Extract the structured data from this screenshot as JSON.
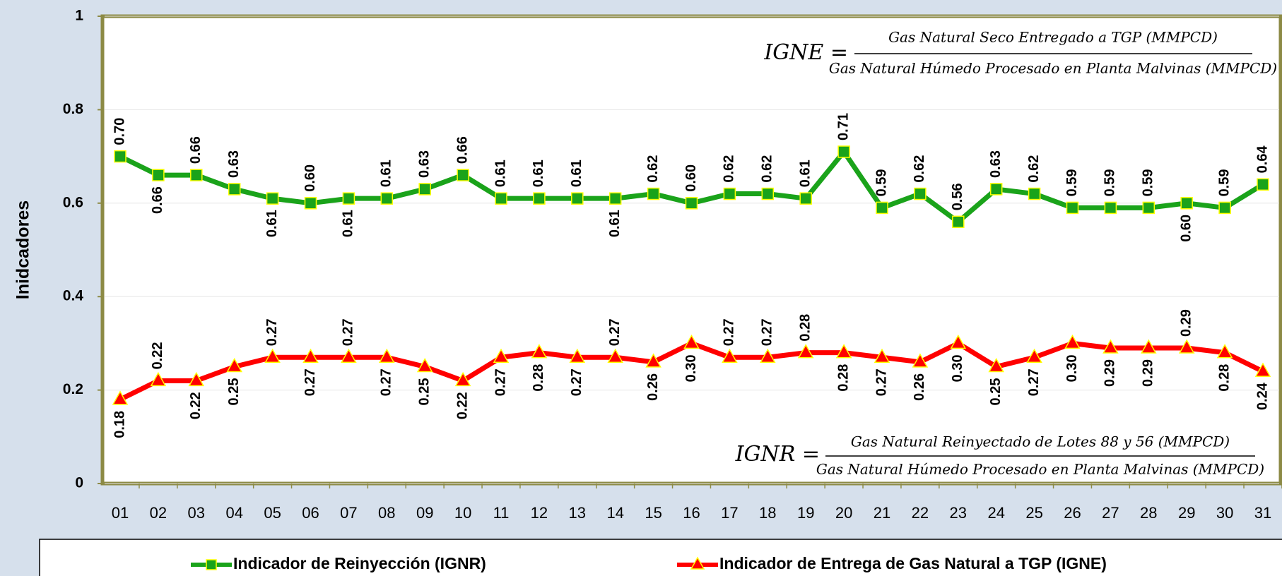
{
  "chart_data": {
    "type": "line",
    "y_label": "Inidcadores",
    "categories": [
      "01",
      "02",
      "03",
      "04",
      "05",
      "06",
      "07",
      "08",
      "09",
      "10",
      "11",
      "12",
      "13",
      "14",
      "15",
      "16",
      "17",
      "18",
      "19",
      "20",
      "21",
      "22",
      "23",
      "24",
      "25",
      "26",
      "27",
      "28",
      "29",
      "30",
      "31"
    ],
    "series": [
      {
        "name": "Indicador de Reinyección (IGNR)",
        "color": "#1aa31a",
        "marker": "square",
        "values": [
          0.7,
          0.66,
          0.66,
          0.63,
          0.61,
          0.6,
          0.61,
          0.61,
          0.63,
          0.66,
          0.61,
          0.61,
          0.61,
          0.61,
          0.62,
          0.6,
          0.62,
          0.62,
          0.61,
          0.71,
          0.59,
          0.62,
          0.56,
          0.63,
          0.62,
          0.59,
          0.59,
          0.59,
          0.6,
          0.59,
          0.64
        ],
        "value_labels": [
          "0.70",
          "0.66",
          "0.66",
          "0.63",
          "0.61",
          "0.60",
          "0.61",
          "0.61",
          "0.63",
          "0.66",
          "0.61",
          "0.61",
          "0.61",
          "0.61",
          "0.62",
          "0.60",
          "0.62",
          "0.62",
          "0.61",
          "0.71",
          "0.59",
          "0.62",
          "0.56",
          "0.63",
          "0.62",
          "0.59",
          "0.59",
          "0.59",
          "0.60",
          "0.59",
          "0.64"
        ]
      },
      {
        "name": "Indicador de Entrega de Gas Natural a TGP (IGNE)",
        "color": "#ff0000",
        "marker": "triangle",
        "values": [
          0.18,
          0.22,
          0.22,
          0.25,
          0.27,
          0.27,
          0.27,
          0.27,
          0.25,
          0.22,
          0.27,
          0.28,
          0.27,
          0.27,
          0.26,
          0.3,
          0.27,
          0.27,
          0.28,
          0.28,
          0.27,
          0.26,
          0.3,
          0.25,
          0.27,
          0.3,
          0.29,
          0.29,
          0.29,
          0.28,
          0.24
        ],
        "value_labels": [
          "0.18",
          "0.22",
          "0.22",
          "0.25",
          "0.27",
          "0.27",
          "0.27",
          "0.27",
          "0.25",
          "0.22",
          "0.27",
          "0.28",
          "0.27",
          "0.27",
          "0.26",
          "0.30",
          "0.27",
          "0.27",
          "0.28",
          "0.28",
          "0.27",
          "0.26",
          "0.30",
          "0.25",
          "0.27",
          "0.30",
          "0.29",
          "0.29",
          "0.29",
          "0.28",
          "0.24"
        ]
      }
    ],
    "ylim": [
      0,
      1
    ],
    "yticks": [
      0,
      0.2,
      0.4,
      0.6,
      0.8,
      1
    ],
    "annotations": [
      {
        "lhs": "IGNE =",
        "numerator": "Gas Natural Seco Entregado a TGP (MMPCD)",
        "denominator": "Gas Natural Húmedo Procesado en Planta Malvinas (MMPCD)"
      },
      {
        "lhs": "IGNR =",
        "numerator": "Gas Natural Reinyectado de Lotes 88 y 56 (MMPCD)",
        "denominator": "Gas Natural Húmedo Procesado en Planta Malvinas (MMPCD)"
      }
    ]
  }
}
